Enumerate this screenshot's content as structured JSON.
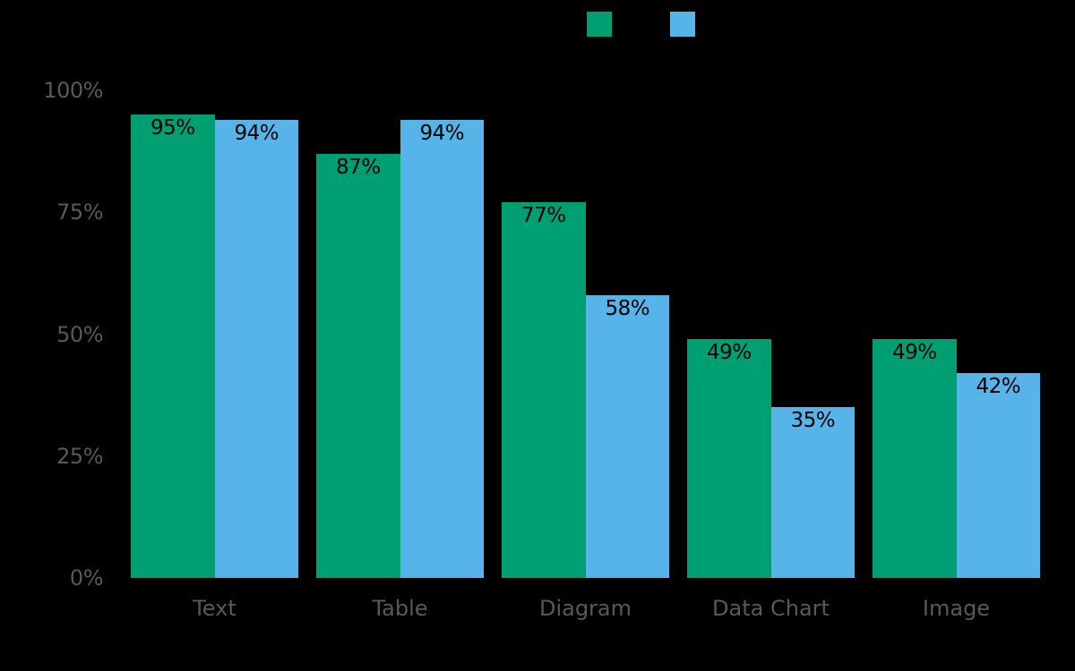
{
  "figure": {
    "background_color": "#000000",
    "tick_label_color": "#595959",
    "bar_label_color": "#000000"
  },
  "chart_data": {
    "type": "bar",
    "title": "",
    "categories": [
      "Text",
      "Table",
      "Diagram",
      "Data Chart",
      "Image"
    ],
    "series": [
      {
        "name": "green-series",
        "color": "#009E73",
        "values": [
          95,
          87,
          77,
          49,
          49
        ]
      },
      {
        "name": "blue-series",
        "color": "#56B4E9",
        "values": [
          94,
          94,
          58,
          35,
          42
        ]
      }
    ],
    "value_suffix": "%",
    "bar_labels_visible": true,
    "xlabel": "",
    "ylabel": "",
    "ylim": [
      0,
      100
    ],
    "yticks": [
      0,
      25,
      50,
      75,
      100
    ],
    "ytick_suffix": "%",
    "grid": false,
    "legend": {
      "position": "top-center",
      "entries": [
        {
          "name": "green-series",
          "swatch_color": "#009E73",
          "label": ""
        },
        {
          "name": "blue-series",
          "swatch_color": "#56B4E9",
          "label": ""
        }
      ]
    }
  }
}
